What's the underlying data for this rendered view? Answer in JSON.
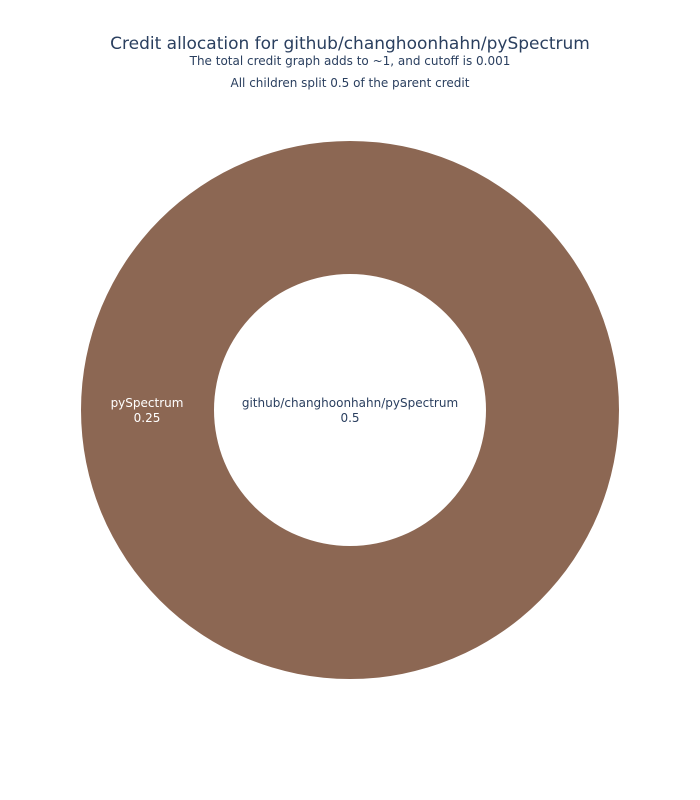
{
  "title": "Credit allocation for github/changhoonhahn/pySpectrum",
  "subtitle_lines": [
    "The total credit graph adds to ~1, and cutoff is 0.001",
    "All children split 0.5 of the parent credit"
  ],
  "chart_data": {
    "type": "sunburst",
    "nodes": [
      {
        "id": "root",
        "label": "github/changhoonhahn/pySpectrum",
        "value": 0.5,
        "parent": null,
        "color": "#ffffff",
        "text_color": "#2a3f5f"
      },
      {
        "id": "child1",
        "label": "pySpectrum",
        "value": 0.25,
        "parent": "root",
        "color": "#8c6753",
        "text_color": "#ffffff"
      }
    ]
  }
}
